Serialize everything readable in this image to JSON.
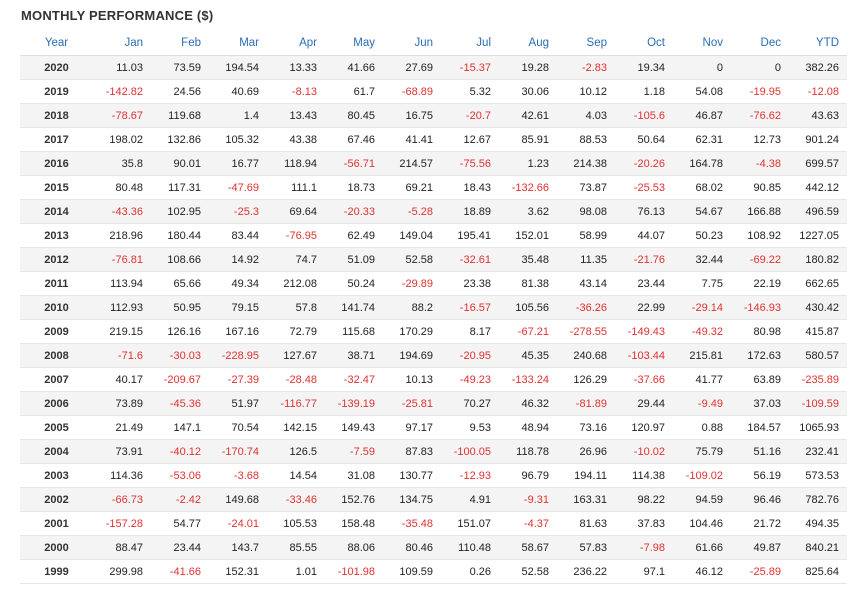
{
  "title": "MONTHLY PERFORMANCE ($)",
  "colors": {
    "header_text": "#2a6db5",
    "negative": "#e03131",
    "stripe": "#f4f4f4"
  },
  "headers": [
    "Year",
    "Jan",
    "Feb",
    "Mar",
    "Apr",
    "May",
    "Jun",
    "Jul",
    "Aug",
    "Sep",
    "Oct",
    "Nov",
    "Dec",
    "YTD"
  ],
  "rows": [
    [
      "2020",
      "11.03",
      "73.59",
      "194.54",
      "13.33",
      "41.66",
      "27.69",
      "-15.37",
      "19.28",
      "-2.83",
      "19.34",
      "0",
      "0",
      "382.26"
    ],
    [
      "2019",
      "-142.82",
      "24.56",
      "40.69",
      "-8.13",
      "61.7",
      "-68.89",
      "5.32",
      "30.06",
      "10.12",
      "1.18",
      "54.08",
      "-19.95",
      "-12.08"
    ],
    [
      "2018",
      "-78.67",
      "119.68",
      "1.4",
      "13.43",
      "80.45",
      "16.75",
      "-20.7",
      "42.61",
      "4.03",
      "-105.6",
      "46.87",
      "-76.62",
      "43.63"
    ],
    [
      "2017",
      "198.02",
      "132.86",
      "105.32",
      "43.38",
      "67.46",
      "41.41",
      "12.67",
      "85.91",
      "88.53",
      "50.64",
      "62.31",
      "12.73",
      "901.24"
    ],
    [
      "2016",
      "35.8",
      "90.01",
      "16.77",
      "118.94",
      "-56.71",
      "214.57",
      "-75.56",
      "1.23",
      "214.38",
      "-20.26",
      "164.78",
      "-4.38",
      "699.57"
    ],
    [
      "2015",
      "80.48",
      "117.31",
      "-47.69",
      "111.1",
      "18.73",
      "69.21",
      "18.43",
      "-132.66",
      "73.87",
      "-25.53",
      "68.02",
      "90.85",
      "442.12"
    ],
    [
      "2014",
      "-43.36",
      "102.95",
      "-25.3",
      "69.64",
      "-20.33",
      "-5.28",
      "18.89",
      "3.62",
      "98.08",
      "76.13",
      "54.67",
      "166.88",
      "496.59"
    ],
    [
      "2013",
      "218.96",
      "180.44",
      "83.44",
      "-76.95",
      "62.49",
      "149.04",
      "195.41",
      "152.01",
      "58.99",
      "44.07",
      "50.23",
      "108.92",
      "1227.05"
    ],
    [
      "2012",
      "-76.81",
      "108.66",
      "14.92",
      "74.7",
      "51.09",
      "52.58",
      "-32.61",
      "35.48",
      "11.35",
      "-21.76",
      "32.44",
      "-69.22",
      "180.82"
    ],
    [
      "2011",
      "113.94",
      "65.66",
      "49.34",
      "212.08",
      "50.24",
      "-29.89",
      "23.38",
      "81.38",
      "43.14",
      "23.44",
      "7.75",
      "22.19",
      "662.65"
    ],
    [
      "2010",
      "112.93",
      "50.95",
      "79.15",
      "57.8",
      "141.74",
      "88.2",
      "-16.57",
      "105.56",
      "-36.26",
      "22.99",
      "-29.14",
      "-146.93",
      "430.42"
    ],
    [
      "2009",
      "219.15",
      "126.16",
      "167.16",
      "72.79",
      "115.68",
      "170.29",
      "8.17",
      "-67.21",
      "-278.55",
      "-149.43",
      "-49.32",
      "80.98",
      "415.87"
    ],
    [
      "2008",
      "-71.6",
      "-30.03",
      "-228.95",
      "127.67",
      "38.71",
      "194.69",
      "-20.95",
      "45.35",
      "240.68",
      "-103.44",
      "215.81",
      "172.63",
      "580.57"
    ],
    [
      "2007",
      "40.17",
      "-209.67",
      "-27.39",
      "-28.48",
      "-32.47",
      "10.13",
      "-49.23",
      "-133.24",
      "126.29",
      "-37.66",
      "41.77",
      "63.89",
      "-235.89"
    ],
    [
      "2006",
      "73.89",
      "-45.36",
      "51.97",
      "-116.77",
      "-139.19",
      "-25.81",
      "70.27",
      "46.32",
      "-81.89",
      "29.44",
      "-9.49",
      "37.03",
      "-109.59"
    ],
    [
      "2005",
      "21.49",
      "147.1",
      "70.54",
      "142.15",
      "149.43",
      "97.17",
      "9.53",
      "48.94",
      "73.16",
      "120.97",
      "0.88",
      "184.57",
      "1065.93"
    ],
    [
      "2004",
      "73.91",
      "-40.12",
      "-170.74",
      "126.5",
      "-7.59",
      "87.83",
      "-100.05",
      "118.78",
      "26.96",
      "-10.02",
      "75.79",
      "51.16",
      "232.41"
    ],
    [
      "2003",
      "114.36",
      "-53.06",
      "-3.68",
      "14.54",
      "31.08",
      "130.77",
      "-12.93",
      "96.79",
      "194.11",
      "114.38",
      "-109.02",
      "56.19",
      "573.53"
    ],
    [
      "2002",
      "-66.73",
      "-2.42",
      "149.68",
      "-33.46",
      "152.76",
      "134.75",
      "4.91",
      "-9.31",
      "163.31",
      "98.22",
      "94.59",
      "96.46",
      "782.76"
    ],
    [
      "2001",
      "-157.28",
      "54.77",
      "-24.01",
      "105.53",
      "158.48",
      "-35.48",
      "151.07",
      "-4.37",
      "81.63",
      "37.83",
      "104.46",
      "21.72",
      "494.35"
    ],
    [
      "2000",
      "88.47",
      "23.44",
      "143.7",
      "85.55",
      "88.06",
      "80.46",
      "110.48",
      "58.67",
      "57.83",
      "-7.98",
      "61.66",
      "49.87",
      "840.21"
    ],
    [
      "1999",
      "299.98",
      "-41.66",
      "152.31",
      "1.01",
      "-101.98",
      "109.59",
      "0.26",
      "52.58",
      "236.22",
      "97.1",
      "46.12",
      "-25.89",
      "825.64"
    ]
  ]
}
